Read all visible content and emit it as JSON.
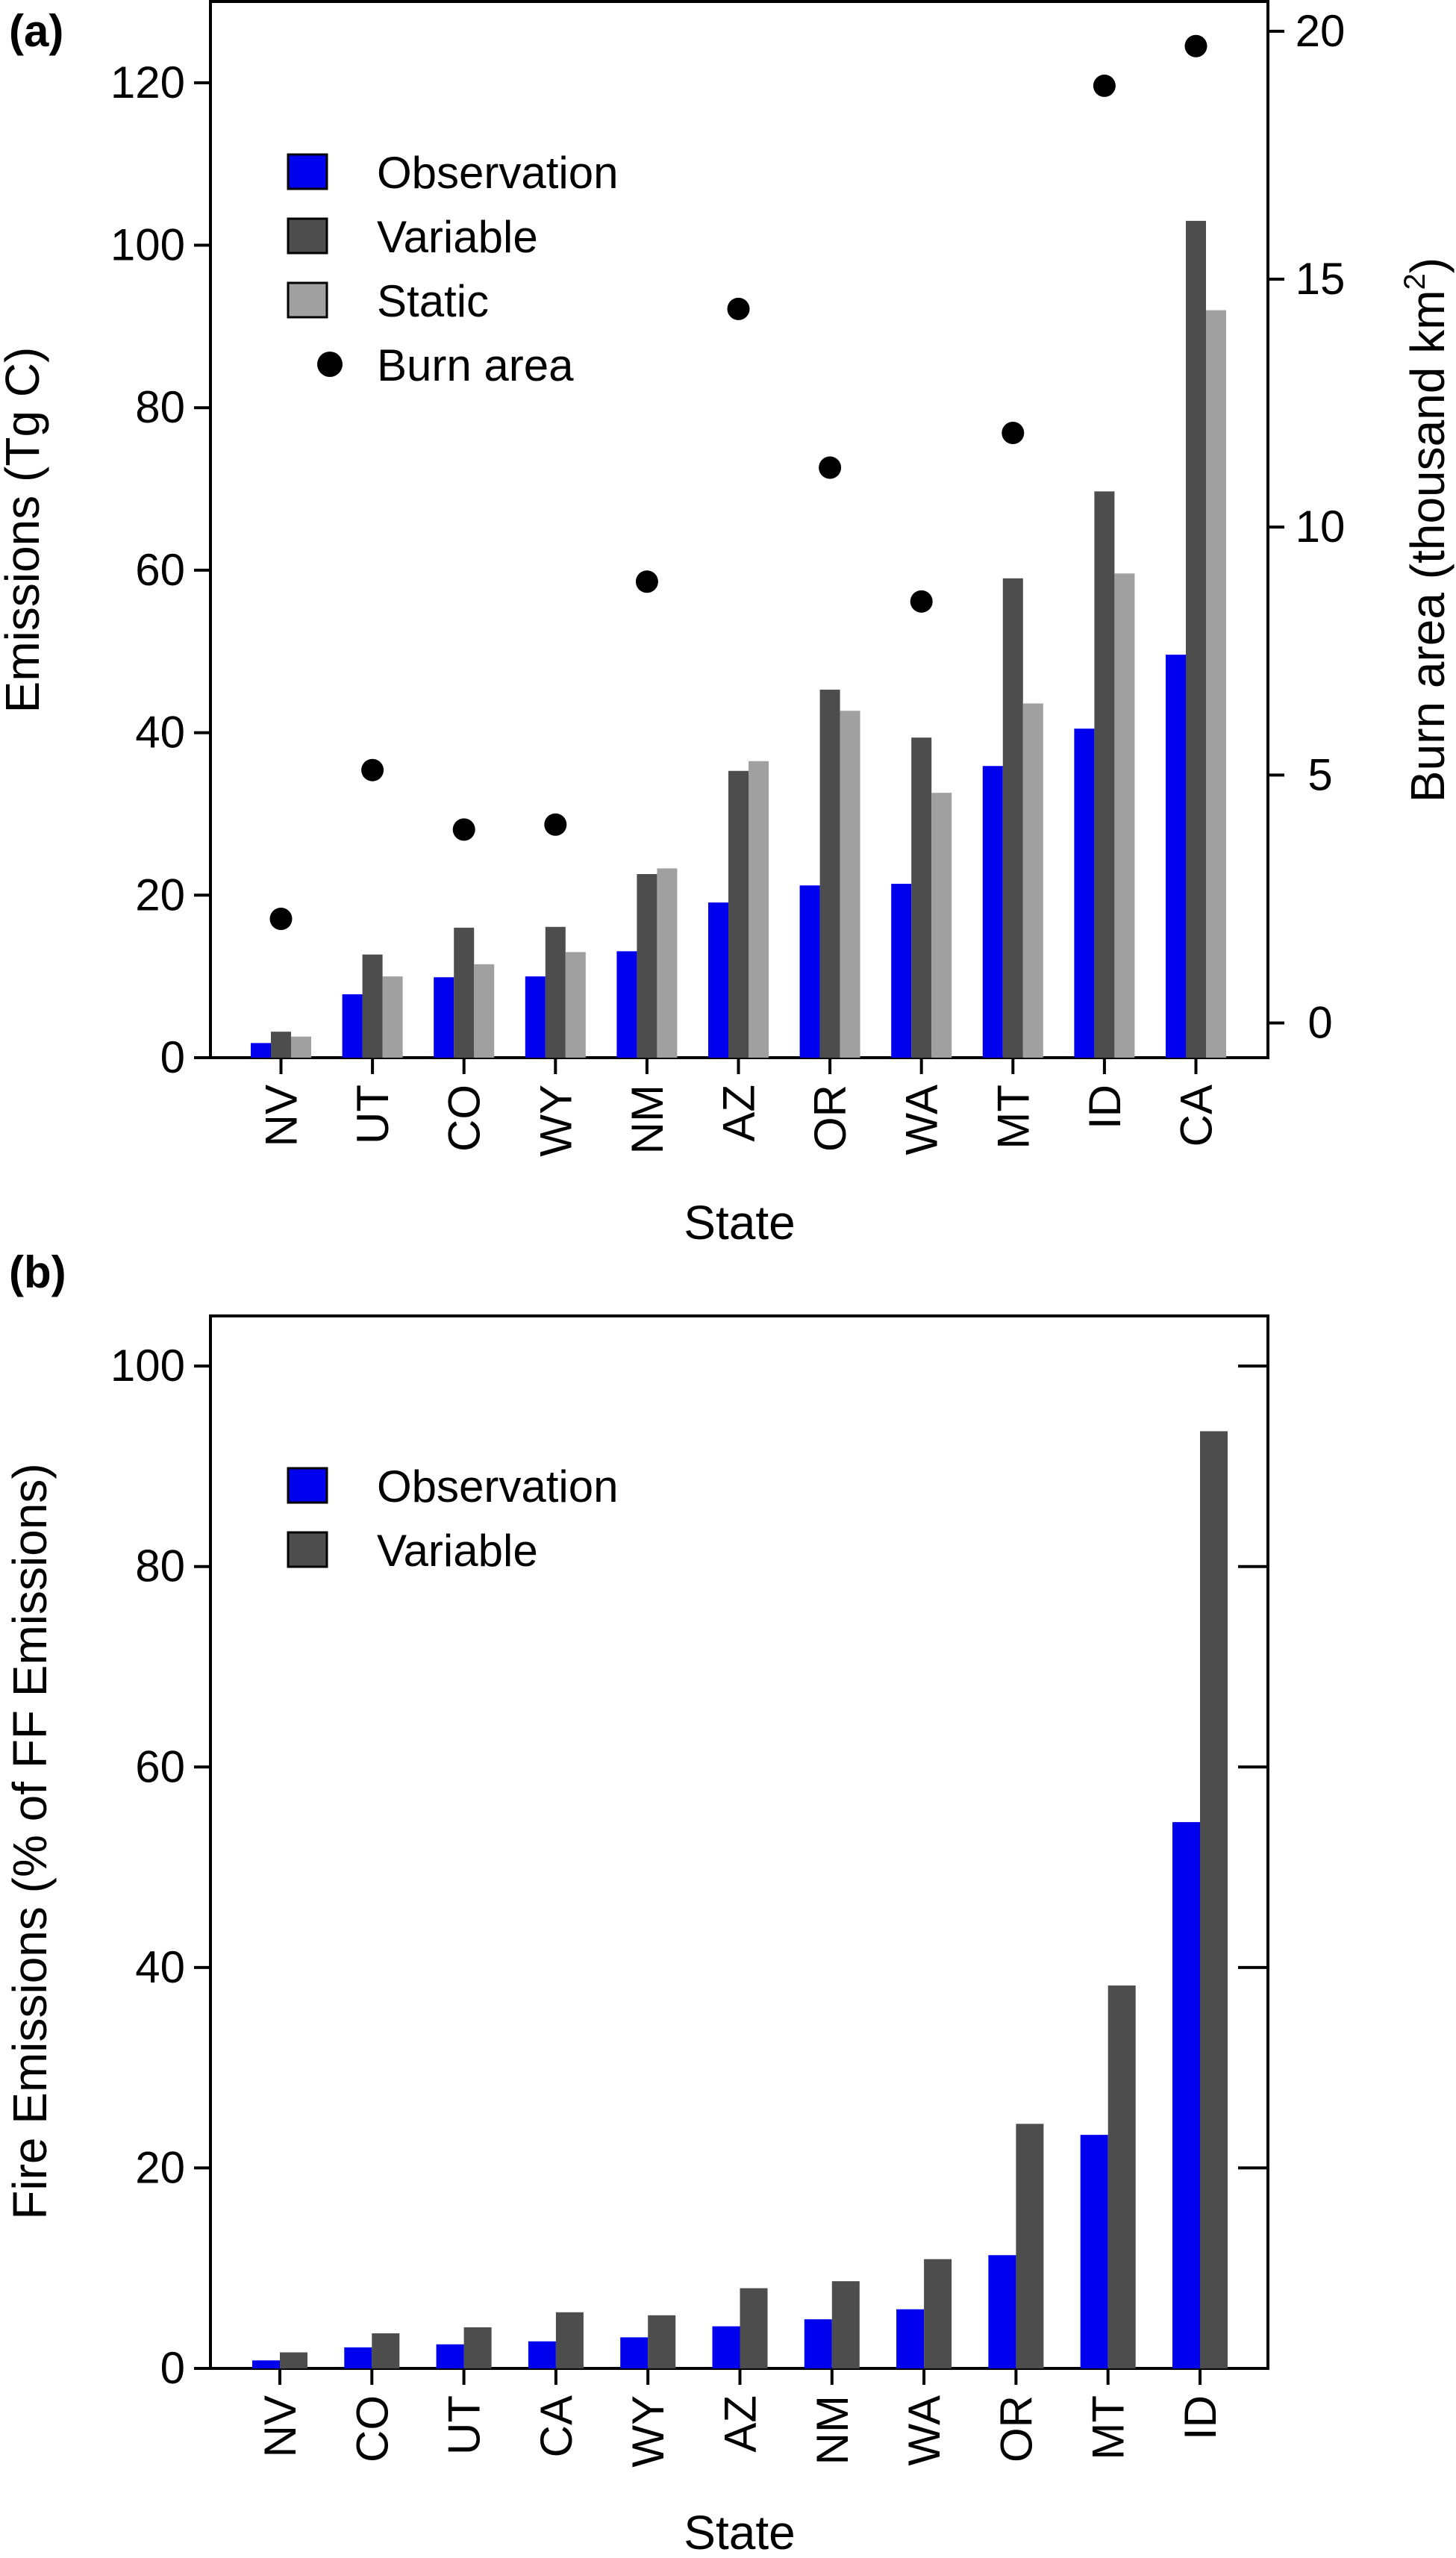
{
  "chart_data": [
    {
      "panel_label": "(a)",
      "type": "bar",
      "xlabel": "State",
      "ylabel": "Emissions (Tg C)",
      "y2label": "Burn area (thousand km",
      "y2label_sup": "2",
      "y2label_end": ")",
      "categories": [
        "NV",
        "UT",
        "CO",
        "WY",
        "NM",
        "AZ",
        "OR",
        "WA",
        "MT",
        "ID",
        "CA"
      ],
      "ylim": [
        0,
        130
      ],
      "yticks": [
        0,
        20,
        40,
        60,
        80,
        100,
        120
      ],
      "y2lim": [
        -0.7,
        20.6
      ],
      "y2ticks": [
        0,
        5,
        10,
        15,
        20
      ],
      "series": [
        {
          "name": "Observation",
          "color": "#0000ee",
          "values": [
            1.8,
            7.8,
            9.9,
            10.0,
            13.1,
            19.1,
            21.2,
            21.4,
            35.9,
            40.5,
            49.6
          ]
        },
        {
          "name": "Variable",
          "color": "#4d4d4d",
          "values": [
            3.2,
            12.7,
            16.0,
            16.1,
            22.6,
            35.3,
            45.3,
            39.4,
            59.0,
            69.7,
            103.0
          ]
        },
        {
          "name": "Static",
          "color": "#a0a0a0",
          "values": [
            2.6,
            10.0,
            11.5,
            13.0,
            23.3,
            36.5,
            42.7,
            32.6,
            43.6,
            59.6,
            92.0
          ]
        }
      ],
      "points": {
        "name": "Burn area",
        "color": "#000000",
        "values": [
          2.1,
          5.1,
          3.9,
          4.0,
          8.9,
          14.4,
          11.2,
          8.5,
          11.9,
          18.9,
          19.7
        ]
      },
      "legend_position": "top-left"
    },
    {
      "panel_label": "(b)",
      "type": "bar",
      "xlabel": "State",
      "ylabel": "Fire Emissions (% of FF Emissions)",
      "categories": [
        "NV",
        "CO",
        "UT",
        "CA",
        "WY",
        "AZ",
        "NM",
        "WA",
        "OR",
        "MT",
        "ID"
      ],
      "ylim": [
        0,
        105
      ],
      "yticks": [
        0,
        20,
        40,
        60,
        80,
        100
      ],
      "series": [
        {
          "name": "Observation",
          "color": "#0000ee",
          "values": [
            0.8,
            2.1,
            2.4,
            2.7,
            3.1,
            4.2,
            4.9,
            5.9,
            11.3,
            23.3,
            54.5
          ]
        },
        {
          "name": "Variable",
          "color": "#4d4d4d",
          "values": [
            1.6,
            3.5,
            4.1,
            5.6,
            5.3,
            8.0,
            8.7,
            10.9,
            24.4,
            38.2,
            93.5
          ]
        }
      ],
      "legend_position": "top-left"
    }
  ]
}
